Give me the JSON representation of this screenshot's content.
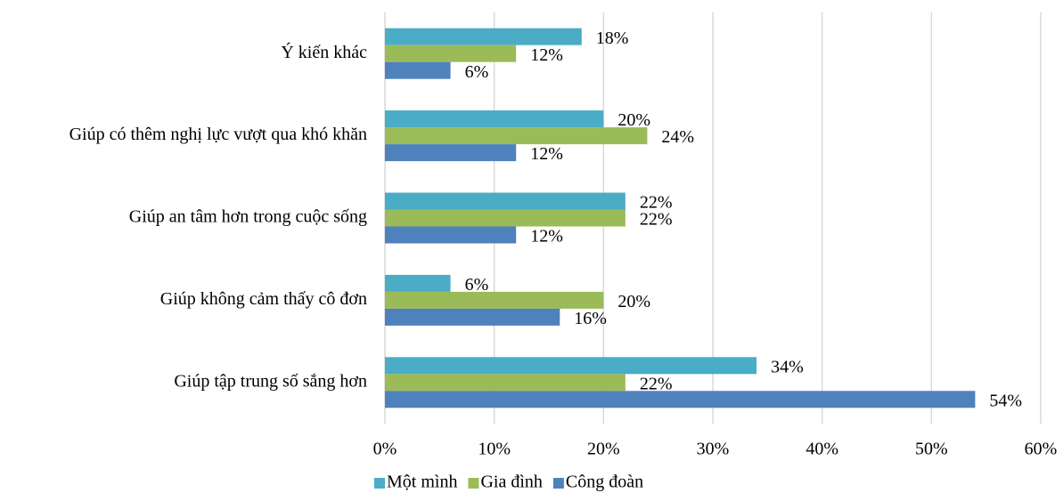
{
  "chart_data": {
    "type": "barh",
    "categories": [
      "Ý kiến khác",
      "Giúp có thêm nghị lực vượt qua khó khăn",
      "Giúp an tâm hơn trong cuộc sống",
      "Giúp không cảm thấy cô đơn",
      "Giúp tập trung số sắng hơn"
    ],
    "series": [
      {
        "name": "Một mình",
        "color": "#4bacc6",
        "values": [
          18,
          20,
          22,
          6,
          34
        ],
        "value_labels": [
          "18%",
          "20%",
          "22%",
          "6%",
          "34%"
        ]
      },
      {
        "name": "Gia đình",
        "color": "#9bbb59",
        "values": [
          12,
          24,
          22,
          20,
          22
        ],
        "value_labels": [
          "12%",
          "24%",
          "22%",
          "20%",
          "22%"
        ]
      },
      {
        "name": "Công đoàn",
        "color": "#4f81bd",
        "values": [
          6,
          12,
          12,
          16,
          54
        ],
        "value_labels": [
          "6%",
          "12%",
          "12%",
          "16%",
          "54%"
        ]
      }
    ],
    "xlim": [
      0,
      60
    ],
    "xticks": [
      {
        "value": 0,
        "label": "0%"
      },
      {
        "value": 10,
        "label": "10%"
      },
      {
        "value": 20,
        "label": "20%"
      },
      {
        "value": 30,
        "label": "30%"
      },
      {
        "value": 40,
        "label": "40%"
      },
      {
        "value": 50,
        "label": "50%"
      },
      {
        "value": 60,
        "label": "60%"
      }
    ],
    "grid": true,
    "legend": "bottom"
  }
}
